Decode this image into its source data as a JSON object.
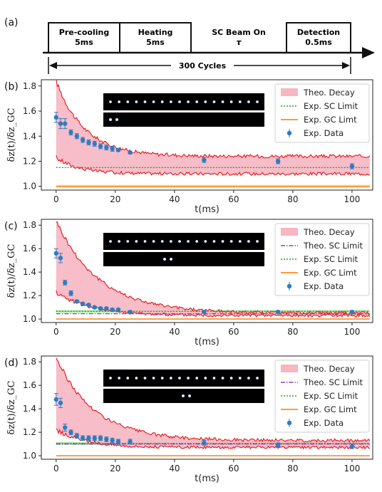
{
  "timing": {
    "panel_label": "(a)",
    "steps": [
      {
        "title": "Pre-cooling",
        "duration": "5ms"
      },
      {
        "title": "Heating",
        "duration": "5ms"
      },
      {
        "title": "SC Beam On",
        "duration": "τ"
      },
      {
        "title": "Detection",
        "duration": "0.5ms"
      }
    ],
    "cycles_label": "300 Cycles"
  },
  "chart_data": [
    {
      "type": "line",
      "panel_label": "(b)",
      "xlabel": "t(ms)",
      "ylabel": "δz(t)/δz_GC",
      "xlim": [
        -5,
        107
      ],
      "ylim": [
        0.97,
        1.85
      ],
      "xticks": [
        0,
        20,
        40,
        60,
        80,
        100
      ],
      "yticks": [
        1.0,
        1.2,
        1.4,
        1.6,
        1.8
      ],
      "legend_position": "top-right",
      "legend": [
        "Theo. Decay",
        "Exp. SC Limit",
        "Exp. GC Limt",
        "Exp. Data"
      ],
      "theo_decay_band": {
        "upper_start": 1.84,
        "upper_end": 1.24,
        "lower_start": 1.23,
        "lower_end": 1.1,
        "tau_ms": 6
      },
      "exp_sc_limit": 1.15,
      "exp_gc_limit": 1.0,
      "exp_data": {
        "x": [
          0,
          1.5,
          3,
          5,
          7,
          9,
          11,
          13,
          15,
          17,
          19,
          21,
          25,
          50,
          75,
          100
        ],
        "y": [
          1.55,
          1.5,
          1.5,
          1.43,
          1.4,
          1.37,
          1.35,
          1.34,
          1.32,
          1.31,
          1.3,
          1.29,
          1.27,
          1.21,
          1.2,
          1.16
        ],
        "err": [
          0.04,
          0.04,
          0.04,
          0.02,
          0.02,
          0.02,
          0.02,
          0.02,
          0.02,
          0.02,
          0.02,
          0.01,
          0.01,
          0.02,
          0.02,
          0.02
        ]
      },
      "ion_images": {
        "top_count": 18,
        "bottom_count": 2
      }
    },
    {
      "type": "line",
      "panel_label": "(c)",
      "xlabel": "t(ms)",
      "ylabel": "δz(t)/δz_GC",
      "xlim": [
        -5,
        107
      ],
      "ylim": [
        0.97,
        1.85
      ],
      "xticks": [
        0,
        20,
        40,
        60,
        80,
        100
      ],
      "yticks": [
        1.0,
        1.2,
        1.4,
        1.6,
        1.8
      ],
      "legend_position": "top-right",
      "legend": [
        "Theo. Decay",
        "Theo. SC Limit",
        "Exp. SC Limit",
        "Exp. GC Limt",
        "Exp. Data"
      ],
      "theo_decay_band": {
        "upper_start": 1.84,
        "upper_end": 1.05,
        "lower_start": 1.23,
        "lower_end": 1.03,
        "tau_ms": 9
      },
      "theo_sc_limit": 1.045,
      "exp_sc_limit": 1.065,
      "exp_gc_limit": 1.0,
      "exp_data": {
        "x": [
          0,
          1.5,
          3,
          5,
          7,
          9,
          11,
          13,
          15,
          17,
          19,
          21,
          25,
          50,
          75,
          100
        ],
        "y": [
          1.56,
          1.52,
          1.31,
          1.22,
          1.15,
          1.13,
          1.12,
          1.1,
          1.09,
          1.09,
          1.08,
          1.08,
          1.06,
          1.06,
          1.06,
          1.06
        ],
        "err": [
          0.04,
          0.04,
          0.02,
          0.02,
          0.01,
          0.01,
          0.01,
          0.01,
          0.01,
          0.01,
          0.01,
          0.01,
          0.01,
          0.01,
          0.01,
          0.01
        ]
      },
      "ion_images": {
        "top_count": 18,
        "bottom_count": 2
      }
    },
    {
      "type": "line",
      "panel_label": "(d)",
      "xlabel": "t(ms)",
      "ylabel": "δz(t)/δz_GC",
      "xlim": [
        -5,
        107
      ],
      "ylim": [
        0.97,
        1.85
      ],
      "xticks": [
        0,
        20,
        40,
        60,
        80,
        100
      ],
      "yticks": [
        1.0,
        1.2,
        1.4,
        1.6,
        1.8
      ],
      "legend_position": "top-right",
      "legend": [
        "Theo. Decay",
        "Theo. SC Limit",
        "Exp. SC Limit",
        "Exp. GC Limt",
        "Exp. Data"
      ],
      "theo_decay_band": {
        "upper_start": 1.84,
        "upper_end": 1.13,
        "lower_start": 1.22,
        "lower_end": 1.07,
        "tau_ms": 8
      },
      "theo_sc_limit": 1.1,
      "exp_sc_limit": 1.105,
      "exp_gc_limit": 1.0,
      "exp_data": {
        "x": [
          0,
          1.5,
          3,
          5,
          7,
          9,
          11,
          13,
          15,
          17,
          19,
          21,
          25,
          50,
          75,
          100
        ],
        "y": [
          1.48,
          1.45,
          1.24,
          1.2,
          1.17,
          1.15,
          1.15,
          1.15,
          1.15,
          1.14,
          1.13,
          1.12,
          1.12,
          1.11,
          1.09,
          1.08
        ],
        "err": [
          0.05,
          0.04,
          0.03,
          0.02,
          0.02,
          0.02,
          0.02,
          0.02,
          0.02,
          0.02,
          0.02,
          0.02,
          0.02,
          0.02,
          0.02,
          0.02
        ]
      },
      "ion_images": {
        "top_count": 18,
        "bottom_count": 2
      }
    }
  ],
  "colors": {
    "band_fill": "#f6b6c2",
    "band_edge": "#e8141b",
    "theo_sc": "#7b45b0",
    "exp_sc": "#2e9e2e",
    "exp_sc_band": "#9be39b",
    "exp_gc": "#ff8c1a",
    "data": "#2f7cc0"
  }
}
